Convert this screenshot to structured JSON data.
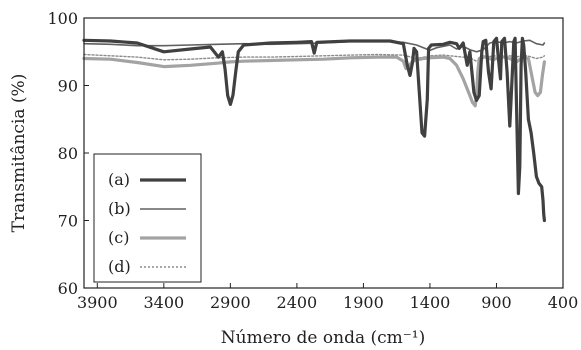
{
  "chart_data": {
    "type": "line",
    "xlabel": "Número de onda (cm⁻¹)",
    "ylabel": "Transmitância (%)",
    "xlim": [
      4000,
      400
    ],
    "ylim": [
      60,
      100
    ],
    "x_reversed": true,
    "grid": false,
    "legend_placement": "bottom-left",
    "xticks": [
      3900,
      3400,
      2900,
      2400,
      1900,
      1400,
      900,
      400
    ],
    "yticks": [
      60,
      70,
      80,
      90,
      100
    ],
    "series": [
      {
        "name": "(a)",
        "color": "#404040",
        "width": 3.2,
        "dash": "",
        "points": [
          [
            4000,
            96.7
          ],
          [
            3800,
            96.6
          ],
          [
            3600,
            96.3
          ],
          [
            3400,
            95.0
          ],
          [
            3200,
            95.4
          ],
          [
            3050,
            95.7
          ],
          [
            2990,
            94.2
          ],
          [
            2960,
            95.0
          ],
          [
            2940,
            92.5
          ],
          [
            2920,
            88.5
          ],
          [
            2900,
            87.2
          ],
          [
            2880,
            88.6
          ],
          [
            2860,
            92.0
          ],
          [
            2840,
            95.0
          ],
          [
            2800,
            96.0
          ],
          [
            2600,
            96.3
          ],
          [
            2400,
            96.4
          ],
          [
            2290,
            96.5
          ],
          [
            2270,
            94.8
          ],
          [
            2250,
            96.4
          ],
          [
            2000,
            96.6
          ],
          [
            1700,
            96.6
          ],
          [
            1600,
            96.2
          ],
          [
            1570,
            93.0
          ],
          [
            1550,
            91.5
          ],
          [
            1530,
            93.5
          ],
          [
            1520,
            95.5
          ],
          [
            1500,
            95.0
          ],
          [
            1480,
            89.0
          ],
          [
            1460,
            83.0
          ],
          [
            1440,
            82.5
          ],
          [
            1420,
            88.0
          ],
          [
            1410,
            95.5
          ],
          [
            1390,
            96.0
          ],
          [
            1300,
            96.1
          ],
          [
            1250,
            96.4
          ],
          [
            1200,
            96.2
          ],
          [
            1180,
            95.5
          ],
          [
            1150,
            96.3
          ],
          [
            1120,
            93.0
          ],
          [
            1100,
            95.0
          ],
          [
            1070,
            89.0
          ],
          [
            1050,
            87.8
          ],
          [
            1030,
            88.5
          ],
          [
            1010,
            95.0
          ],
          [
            1000,
            96.5
          ],
          [
            980,
            96.7
          ],
          [
            960,
            92.0
          ],
          [
            940,
            89.5
          ],
          [
            920,
            96.5
          ],
          [
            900,
            97.0
          ],
          [
            880,
            93.0
          ],
          [
            870,
            91.0
          ],
          [
            860,
            96.5
          ],
          [
            840,
            97.0
          ],
          [
            820,
            92.0
          ],
          [
            800,
            84.0
          ],
          [
            790,
            88.0
          ],
          [
            770,
            96.5
          ],
          [
            760,
            97.0
          ],
          [
            745,
            83.0
          ],
          [
            735,
            74.0
          ],
          [
            725,
            78.0
          ],
          [
            715,
            93.0
          ],
          [
            705,
            97.0
          ],
          [
            695,
            96.0
          ],
          [
            680,
            92.0
          ],
          [
            660,
            85.0
          ],
          [
            640,
            83.0
          ],
          [
            620,
            80.0
          ],
          [
            600,
            76.5
          ],
          [
            580,
            75.5
          ],
          [
            560,
            75.0
          ],
          [
            550,
            73.0
          ],
          [
            545,
            71.0
          ],
          [
            540,
            70.0
          ]
        ]
      },
      {
        "name": "(b)",
        "color": "#606060",
        "width": 1.6,
        "dash": "",
        "points": [
          [
            4000,
            96.2
          ],
          [
            3800,
            96.1
          ],
          [
            3600,
            95.9
          ],
          [
            3400,
            95.9
          ],
          [
            3200,
            96.0
          ],
          [
            3000,
            96.1
          ],
          [
            2800,
            96.2
          ],
          [
            2600,
            96.1
          ],
          [
            2400,
            96.2
          ],
          [
            2200,
            96.3
          ],
          [
            2000,
            96.5
          ],
          [
            1800,
            96.6
          ],
          [
            1600,
            96.4
          ],
          [
            1500,
            96.0
          ],
          [
            1400,
            95.2
          ],
          [
            1350,
            95.6
          ],
          [
            1300,
            95.8
          ],
          [
            1250,
            96.0
          ],
          [
            1200,
            95.4
          ],
          [
            1150,
            95.8
          ],
          [
            1100,
            95.3
          ],
          [
            1050,
            95.0
          ],
          [
            1000,
            95.3
          ],
          [
            950,
            96.3
          ],
          [
            900,
            96.5
          ],
          [
            850,
            96.3
          ],
          [
            800,
            96.5
          ],
          [
            750,
            96.3
          ],
          [
            700,
            96.6
          ],
          [
            650,
            96.7
          ],
          [
            600,
            96.2
          ],
          [
            550,
            96.0
          ],
          [
            540,
            96.3
          ]
        ]
      },
      {
        "name": "(c)",
        "color": "#a3a3a3",
        "width": 3.2,
        "dash": "",
        "points": [
          [
            4000,
            94.0
          ],
          [
            3800,
            93.9
          ],
          [
            3600,
            93.4
          ],
          [
            3400,
            92.8
          ],
          [
            3200,
            93.0
          ],
          [
            3000,
            93.3
          ],
          [
            2900,
            93.5
          ],
          [
            2800,
            93.6
          ],
          [
            2600,
            93.7
          ],
          [
            2400,
            93.8
          ],
          [
            2200,
            93.9
          ],
          [
            2000,
            94.1
          ],
          [
            1800,
            94.2
          ],
          [
            1650,
            94.2
          ],
          [
            1600,
            93.6
          ],
          [
            1580,
            92.5
          ],
          [
            1560,
            92.8
          ],
          [
            1530,
            93.6
          ],
          [
            1500,
            93.8
          ],
          [
            1450,
            94.0
          ],
          [
            1400,
            94.1
          ],
          [
            1300,
            94.2
          ],
          [
            1250,
            94.0
          ],
          [
            1200,
            93.0
          ],
          [
            1150,
            91.0
          ],
          [
            1120,
            89.5
          ],
          [
            1100,
            88.5
          ],
          [
            1080,
            87.5
          ],
          [
            1060,
            87.0
          ],
          [
            1050,
            88.5
          ],
          [
            1040,
            92.0
          ],
          [
            1030,
            94.0
          ],
          [
            1000,
            94.3
          ],
          [
            960,
            94.1
          ],
          [
            930,
            93.8
          ],
          [
            900,
            94.0
          ],
          [
            870,
            94.3
          ],
          [
            840,
            94.2
          ],
          [
            800,
            94.0
          ],
          [
            750,
            93.5
          ],
          [
            700,
            94.2
          ],
          [
            660,
            94.0
          ],
          [
            630,
            91.0
          ],
          [
            610,
            89.0
          ],
          [
            590,
            88.5
          ],
          [
            570,
            89.0
          ],
          [
            555,
            91.5
          ],
          [
            540,
            93.5
          ]
        ]
      },
      {
        "name": "(d)",
        "color": "#8c8c8c",
        "width": 1.4,
        "dash": "2,2",
        "points": [
          [
            4000,
            94.6
          ],
          [
            3800,
            94.4
          ],
          [
            3600,
            94.2
          ],
          [
            3400,
            93.8
          ],
          [
            3200,
            93.9
          ],
          [
            3000,
            94.1
          ],
          [
            2800,
            94.2
          ],
          [
            2600,
            94.2
          ],
          [
            2400,
            94.3
          ],
          [
            2200,
            94.4
          ],
          [
            2000,
            94.5
          ],
          [
            1800,
            94.6
          ],
          [
            1600,
            94.5
          ],
          [
            1500,
            94.0
          ],
          [
            1400,
            94.4
          ],
          [
            1300,
            94.5
          ],
          [
            1200,
            94.3
          ],
          [
            1100,
            94.1
          ],
          [
            1050,
            93.6
          ],
          [
            1000,
            94.0
          ],
          [
            950,
            94.3
          ],
          [
            900,
            94.4
          ],
          [
            850,
            94.3
          ],
          [
            800,
            94.4
          ],
          [
            750,
            94.2
          ],
          [
            700,
            94.5
          ],
          [
            650,
            94.3
          ],
          [
            600,
            94.0
          ],
          [
            550,
            94.2
          ],
          [
            540,
            94.4
          ]
        ]
      }
    ]
  }
}
